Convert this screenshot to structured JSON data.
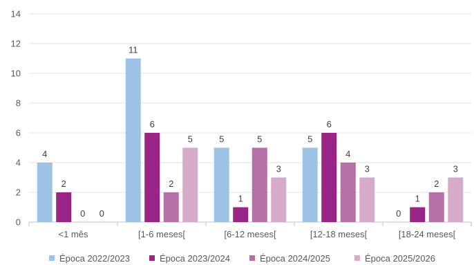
{
  "chart_data": {
    "type": "bar",
    "title": "",
    "xlabel": "",
    "ylabel": "",
    "ylim": [
      0,
      14
    ],
    "yticks": [
      0,
      2,
      4,
      6,
      8,
      10,
      12,
      14
    ],
    "grid": true,
    "legend_position": "bottom",
    "categories": [
      "<1 mês",
      "[1-6 meses[",
      "[6-12 meses[",
      "[12-18 meses[",
      "[18-24 meses["
    ],
    "series": [
      {
        "name": "Época 2022/2023",
        "color": "#9DC3E6",
        "values": [
          4,
          11,
          5,
          5,
          0
        ]
      },
      {
        "name": "Época 2023/2024",
        "color": "#9B2487",
        "values": [
          2,
          6,
          1,
          6,
          1
        ]
      },
      {
        "name": "Época 2024/2025",
        "color": "#B570A8",
        "values": [
          0,
          2,
          5,
          4,
          2
        ]
      },
      {
        "name": "Época 2025/2026",
        "color": "#D5ADCB",
        "values": [
          0,
          5,
          3,
          3,
          3
        ]
      }
    ]
  }
}
